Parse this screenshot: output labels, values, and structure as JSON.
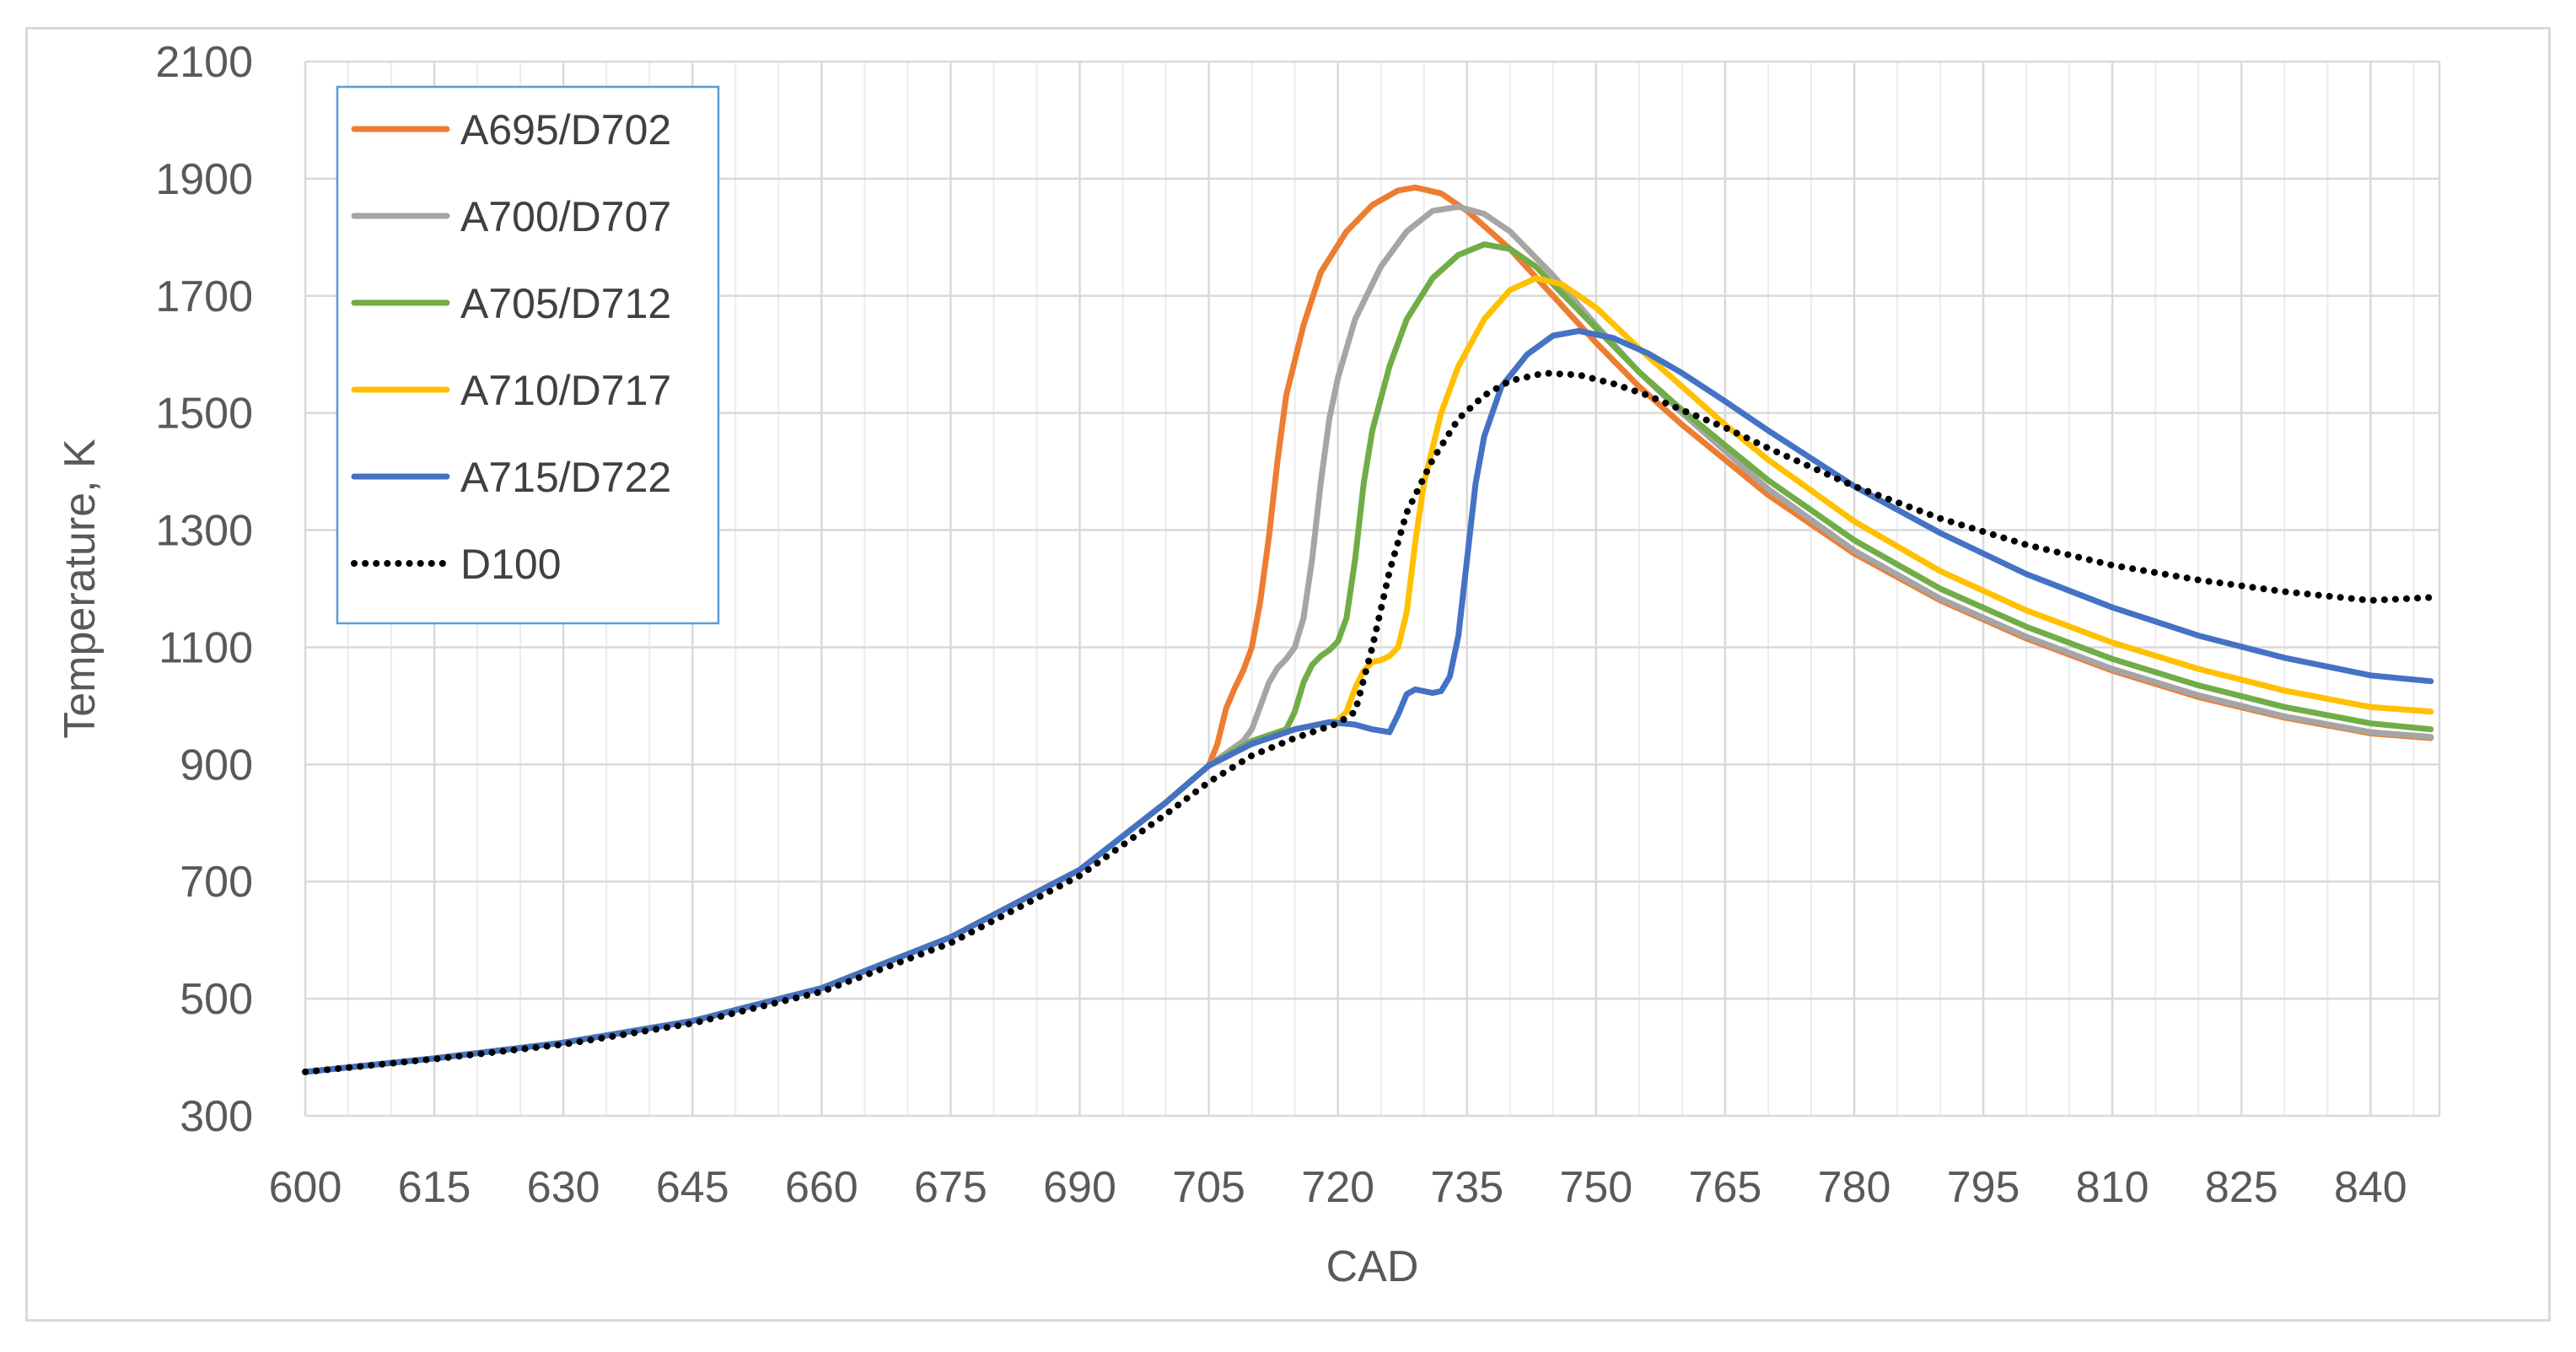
{
  "chart_data": {
    "type": "line",
    "title": "",
    "xlabel": "CAD",
    "ylabel": "Temperature, K",
    "xlim": [
      600,
      848
    ],
    "ylim": [
      300,
      2100
    ],
    "x_ticks": [
      600,
      615,
      630,
      645,
      660,
      675,
      690,
      705,
      720,
      735,
      750,
      765,
      780,
      795,
      810,
      825,
      840
    ],
    "y_ticks": [
      300,
      500,
      700,
      900,
      1100,
      1300,
      1500,
      1700,
      1900,
      2100
    ],
    "grid": true,
    "minor_grid_x_step": 5,
    "legend_position": "top-left",
    "series": [
      {
        "name": "A695/D702",
        "color": "#ED7D31",
        "style": "solid",
        "points": [
          [
            600,
            375
          ],
          [
            615,
            398
          ],
          [
            630,
            425
          ],
          [
            645,
            462
          ],
          [
            660,
            518
          ],
          [
            675,
            605
          ],
          [
            690,
            720
          ],
          [
            700,
            835
          ],
          [
            705,
            898
          ],
          [
            706,
            935
          ],
          [
            707,
            995
          ],
          [
            708,
            1030
          ],
          [
            709,
            1060
          ],
          [
            710,
            1100
          ],
          [
            711,
            1180
          ],
          [
            712,
            1290
          ],
          [
            713,
            1420
          ],
          [
            714,
            1530
          ],
          [
            716,
            1650
          ],
          [
            718,
            1740
          ],
          [
            721,
            1810
          ],
          [
            724,
            1855
          ],
          [
            727,
            1880
          ],
          [
            729,
            1885
          ],
          [
            732,
            1875
          ],
          [
            735,
            1845
          ],
          [
            740,
            1780
          ],
          [
            745,
            1700
          ],
          [
            750,
            1620
          ],
          [
            755,
            1545
          ],
          [
            760,
            1480
          ],
          [
            765,
            1420
          ],
          [
            770,
            1360
          ],
          [
            780,
            1260
          ],
          [
            790,
            1180
          ],
          [
            800,
            1115
          ],
          [
            810,
            1060
          ],
          [
            820,
            1015
          ],
          [
            830,
            980
          ],
          [
            840,
            953
          ],
          [
            847,
            945
          ]
        ]
      },
      {
        "name": "A700/D707",
        "color": "#A5A5A5",
        "style": "solid",
        "points": [
          [
            600,
            375
          ],
          [
            615,
            398
          ],
          [
            630,
            425
          ],
          [
            645,
            462
          ],
          [
            660,
            518
          ],
          [
            675,
            605
          ],
          [
            690,
            720
          ],
          [
            700,
            835
          ],
          [
            705,
            898
          ],
          [
            709,
            940
          ],
          [
            710,
            960
          ],
          [
            711,
            1000
          ],
          [
            712,
            1040
          ],
          [
            713,
            1065
          ],
          [
            714,
            1080
          ],
          [
            715,
            1100
          ],
          [
            716,
            1150
          ],
          [
            717,
            1250
          ],
          [
            718,
            1380
          ],
          [
            719,
            1490
          ],
          [
            720,
            1560
          ],
          [
            722,
            1660
          ],
          [
            725,
            1750
          ],
          [
            728,
            1810
          ],
          [
            731,
            1845
          ],
          [
            734,
            1852
          ],
          [
            737,
            1840
          ],
          [
            740,
            1810
          ],
          [
            745,
            1735
          ],
          [
            750,
            1650
          ],
          [
            755,
            1570
          ],
          [
            760,
            1500
          ],
          [
            765,
            1435
          ],
          [
            770,
            1370
          ],
          [
            780,
            1265
          ],
          [
            790,
            1183
          ],
          [
            800,
            1118
          ],
          [
            810,
            1063
          ],
          [
            820,
            1018
          ],
          [
            830,
            982
          ],
          [
            840,
            955
          ],
          [
            847,
            947
          ]
        ]
      },
      {
        "name": "A705/D712",
        "color": "#70AD47",
        "style": "solid",
        "points": [
          [
            600,
            375
          ],
          [
            615,
            398
          ],
          [
            630,
            425
          ],
          [
            645,
            462
          ],
          [
            660,
            518
          ],
          [
            675,
            605
          ],
          [
            690,
            720
          ],
          [
            700,
            835
          ],
          [
            705,
            898
          ],
          [
            710,
            940
          ],
          [
            714,
            960
          ],
          [
            715,
            990
          ],
          [
            716,
            1040
          ],
          [
            717,
            1070
          ],
          [
            718,
            1085
          ],
          [
            719,
            1095
          ],
          [
            720,
            1110
          ],
          [
            721,
            1150
          ],
          [
            722,
            1250
          ],
          [
            723,
            1380
          ],
          [
            724,
            1470
          ],
          [
            726,
            1580
          ],
          [
            728,
            1660
          ],
          [
            731,
            1730
          ],
          [
            734,
            1770
          ],
          [
            737,
            1788
          ],
          [
            740,
            1780
          ],
          [
            743,
            1750
          ],
          [
            746,
            1705
          ],
          [
            750,
            1645
          ],
          [
            755,
            1570
          ],
          [
            760,
            1505
          ],
          [
            765,
            1445
          ],
          [
            770,
            1385
          ],
          [
            780,
            1283
          ],
          [
            790,
            1200
          ],
          [
            800,
            1135
          ],
          [
            810,
            1080
          ],
          [
            820,
            1035
          ],
          [
            830,
            998
          ],
          [
            840,
            970
          ],
          [
            847,
            960
          ]
        ]
      },
      {
        "name": "A710/D717",
        "color": "#FFC000",
        "style": "solid",
        "points": [
          [
            600,
            375
          ],
          [
            615,
            398
          ],
          [
            630,
            425
          ],
          [
            645,
            462
          ],
          [
            660,
            518
          ],
          [
            675,
            605
          ],
          [
            690,
            720
          ],
          [
            700,
            835
          ],
          [
            705,
            898
          ],
          [
            710,
            935
          ],
          [
            715,
            960
          ],
          [
            720,
            975
          ],
          [
            721,
            990
          ],
          [
            722,
            1030
          ],
          [
            723,
            1060
          ],
          [
            724,
            1075
          ],
          [
            725,
            1078
          ],
          [
            726,
            1085
          ],
          [
            727,
            1100
          ],
          [
            728,
            1160
          ],
          [
            729,
            1280
          ],
          [
            730,
            1380
          ],
          [
            732,
            1500
          ],
          [
            734,
            1580
          ],
          [
            737,
            1660
          ],
          [
            740,
            1710
          ],
          [
            743,
            1730
          ],
          [
            746,
            1720
          ],
          [
            750,
            1680
          ],
          [
            755,
            1610
          ],
          [
            760,
            1545
          ],
          [
            765,
            1480
          ],
          [
            770,
            1420
          ],
          [
            780,
            1315
          ],
          [
            790,
            1230
          ],
          [
            800,
            1163
          ],
          [
            810,
            1108
          ],
          [
            820,
            1063
          ],
          [
            830,
            1026
          ],
          [
            840,
            998
          ],
          [
            847,
            990
          ]
        ]
      },
      {
        "name": "A715/D722",
        "color": "#4472C4",
        "style": "solid",
        "points": [
          [
            600,
            375
          ],
          [
            615,
            398
          ],
          [
            630,
            425
          ],
          [
            645,
            462
          ],
          [
            660,
            518
          ],
          [
            675,
            605
          ],
          [
            690,
            720
          ],
          [
            700,
            835
          ],
          [
            705,
            898
          ],
          [
            710,
            935
          ],
          [
            715,
            960
          ],
          [
            719,
            972
          ],
          [
            722,
            968
          ],
          [
            724,
            960
          ],
          [
            726,
            955
          ],
          [
            727,
            985
          ],
          [
            728,
            1020
          ],
          [
            729,
            1028
          ],
          [
            730,
            1025
          ],
          [
            731,
            1022
          ],
          [
            732,
            1025
          ],
          [
            733,
            1050
          ],
          [
            734,
            1120
          ],
          [
            735,
            1250
          ],
          [
            736,
            1380
          ],
          [
            737,
            1460
          ],
          [
            739,
            1545
          ],
          [
            742,
            1600
          ],
          [
            745,
            1632
          ],
          [
            748,
            1640
          ],
          [
            752,
            1628
          ],
          [
            756,
            1602
          ],
          [
            760,
            1568
          ],
          [
            765,
            1520
          ],
          [
            770,
            1470
          ],
          [
            780,
            1375
          ],
          [
            790,
            1295
          ],
          [
            800,
            1225
          ],
          [
            810,
            1168
          ],
          [
            820,
            1120
          ],
          [
            830,
            1082
          ],
          [
            840,
            1052
          ],
          [
            847,
            1042
          ]
        ]
      },
      {
        "name": "D100",
        "color": "#000000",
        "style": "dotted",
        "points": [
          [
            600,
            375
          ],
          [
            615,
            397
          ],
          [
            630,
            422
          ],
          [
            645,
            458
          ],
          [
            660,
            512
          ],
          [
            675,
            595
          ],
          [
            690,
            710
          ],
          [
            700,
            815
          ],
          [
            705,
            870
          ],
          [
            710,
            915
          ],
          [
            715,
            945
          ],
          [
            720,
            970
          ],
          [
            722,
            990
          ],
          [
            724,
            1100
          ],
          [
            726,
            1230
          ],
          [
            728,
            1330
          ],
          [
            731,
            1420
          ],
          [
            734,
            1490
          ],
          [
            737,
            1530
          ],
          [
            740,
            1555
          ],
          [
            744,
            1568
          ],
          [
            748,
            1565
          ],
          [
            752,
            1550
          ],
          [
            756,
            1530
          ],
          [
            760,
            1505
          ],
          [
            765,
            1475
          ],
          [
            770,
            1440
          ],
          [
            780,
            1375
          ],
          [
            790,
            1320
          ],
          [
            800,
            1275
          ],
          [
            810,
            1240
          ],
          [
            820,
            1215
          ],
          [
            830,
            1195
          ],
          [
            840,
            1180
          ],
          [
            847,
            1185
          ]
        ]
      }
    ]
  }
}
